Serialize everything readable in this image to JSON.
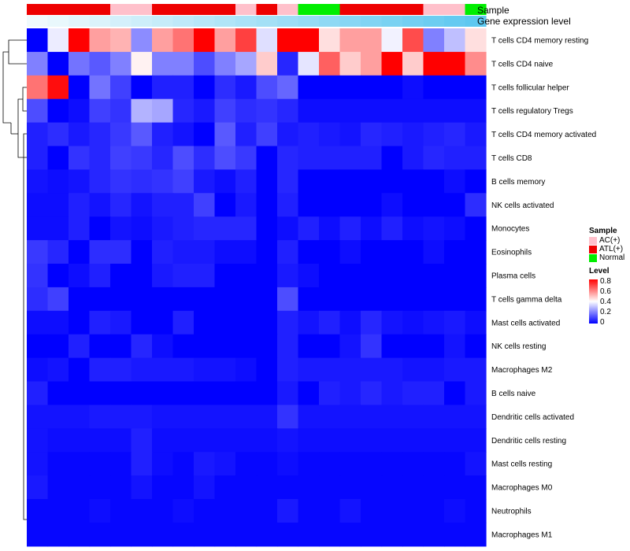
{
  "chart_data": {
    "type": "heatmap",
    "title": "",
    "annotation_labels": [
      "Sample",
      "Gene expression level"
    ],
    "sample_groups": [
      "ATL(+)",
      "ATL(+)",
      "ATL(+)",
      "ATL(+)",
      "AC(+)",
      "AC(+)",
      "ATL(+)",
      "ATL(+)",
      "ATL(+)",
      "ATL(+)",
      "AC(+)",
      "ATL(+)",
      "AC(+)",
      "Normal",
      "Normal",
      "ATL(+)",
      "ATL(+)",
      "ATL(+)",
      "ATL(+)",
      "AC(+)",
      "AC(+)",
      "Normal"
    ],
    "expression_level": [
      0,
      0.04,
      0.08,
      0.12,
      0.16,
      0.2,
      0.24,
      0.28,
      0.32,
      0.36,
      0.4,
      0.44,
      0.48,
      0.52,
      0.56,
      0.6,
      0.64,
      0.68,
      0.72,
      0.76,
      0.8,
      0.84
    ],
    "rows": [
      "T cells CD4 memory resting",
      "T cells CD4 naive",
      "T cells follicular helper",
      "T cells regulatory  Tregs",
      "T cells CD4 memory activated",
      "T cells CD8",
      "B cells memory",
      "NK cells activated",
      "Monocytes",
      "Eosinophils",
      "Plasma cells",
      "T cells gamma delta",
      "Mast cells activated",
      "NK cells resting",
      "Macrophages M2",
      "B cells naive",
      "Dendritic cells activated",
      "Dendritic cells resting",
      "Mast cells resting",
      "Macrophages M0",
      "Neutrophils",
      "Macrophages M1"
    ],
    "values": [
      [
        0.0,
        0.37,
        0.8,
        0.55,
        0.52,
        0.22,
        0.55,
        0.62,
        0.8,
        0.55,
        0.7,
        0.35,
        0.8,
        0.8,
        0.45,
        0.55,
        0.55,
        0.38,
        0.68,
        0.2,
        0.3,
        0.45
      ],
      [
        0.2,
        0.0,
        0.18,
        0.14,
        0.2,
        0.42,
        0.2,
        0.2,
        0.12,
        0.2,
        0.26,
        0.48,
        0.06,
        0.36,
        0.65,
        0.48,
        0.55,
        0.8,
        0.48,
        0.8,
        0.8,
        0.58
      ],
      [
        0.62,
        0.78,
        0.0,
        0.18,
        0.1,
        0.0,
        0.05,
        0.05,
        0.0,
        0.07,
        0.04,
        0.12,
        0.16,
        0.0,
        0.0,
        0.0,
        0.0,
        0.0,
        0.02,
        0.0,
        0.0,
        0.0
      ],
      [
        0.12,
        0.0,
        0.02,
        0.1,
        0.08,
        0.28,
        0.26,
        0.06,
        0.04,
        0.1,
        0.07,
        0.08,
        0.06,
        0.02,
        0.02,
        0.02,
        0.02,
        0.02,
        0.02,
        0.02,
        0.02,
        0.02
      ],
      [
        0.05,
        0.07,
        0.04,
        0.06,
        0.09,
        0.14,
        0.05,
        0.03,
        0.0,
        0.14,
        0.05,
        0.1,
        0.04,
        0.05,
        0.04,
        0.03,
        0.06,
        0.05,
        0.04,
        0.05,
        0.06,
        0.04
      ],
      [
        0.05,
        0.0,
        0.08,
        0.06,
        0.1,
        0.09,
        0.06,
        0.12,
        0.07,
        0.12,
        0.09,
        0.0,
        0.06,
        0.05,
        0.05,
        0.05,
        0.05,
        0.0,
        0.04,
        0.06,
        0.05,
        0.05
      ],
      [
        0.03,
        0.02,
        0.03,
        0.06,
        0.08,
        0.07,
        0.08,
        0.1,
        0.04,
        0.02,
        0.05,
        0.0,
        0.06,
        0.0,
        0.0,
        0.0,
        0.0,
        0.0,
        0.0,
        0.0,
        0.02,
        0.0
      ],
      [
        0.02,
        0.02,
        0.05,
        0.03,
        0.06,
        0.03,
        0.05,
        0.05,
        0.1,
        0.0,
        0.04,
        0.0,
        0.05,
        0.0,
        0.0,
        0.0,
        0.0,
        0.02,
        0.0,
        0.0,
        0.0,
        0.07
      ],
      [
        0.02,
        0.02,
        0.05,
        0.0,
        0.03,
        0.02,
        0.04,
        0.05,
        0.06,
        0.06,
        0.06,
        0.0,
        0.02,
        0.05,
        0.02,
        0.05,
        0.02,
        0.05,
        0.02,
        0.03,
        0.02,
        0.0
      ],
      [
        0.09,
        0.06,
        0.0,
        0.07,
        0.07,
        0.0,
        0.05,
        0.04,
        0.04,
        0.02,
        0.02,
        0.0,
        0.05,
        0.0,
        0.0,
        0.02,
        0.0,
        0.0,
        0.0,
        0.02,
        0.0,
        0.0
      ],
      [
        0.08,
        0.0,
        0.02,
        0.05,
        0.0,
        0.0,
        0.04,
        0.05,
        0.05,
        0.0,
        0.0,
        0.0,
        0.04,
        0.02,
        0.0,
        0.0,
        0.0,
        0.0,
        0.0,
        0.0,
        0.0,
        0.0
      ],
      [
        0.07,
        0.1,
        0.0,
        0.0,
        0.0,
        0.0,
        0.0,
        0.0,
        0.0,
        0.0,
        0.0,
        0.0,
        0.12,
        0.0,
        0.0,
        0.0,
        0.0,
        0.0,
        0.0,
        0.0,
        0.0,
        0.0
      ],
      [
        0.02,
        0.02,
        0.0,
        0.05,
        0.04,
        0.0,
        0.0,
        0.05,
        0.0,
        0.0,
        0.0,
        0.0,
        0.05,
        0.03,
        0.05,
        0.02,
        0.06,
        0.03,
        0.02,
        0.03,
        0.04,
        0.02
      ],
      [
        0.0,
        0.0,
        0.05,
        0.0,
        0.0,
        0.06,
        0.02,
        0.0,
        0.0,
        0.0,
        0.0,
        0.0,
        0.05,
        0.0,
        0.0,
        0.03,
        0.08,
        0.0,
        0.0,
        0.0,
        0.03,
        0.0
      ],
      [
        0.02,
        0.03,
        0.0,
        0.05,
        0.05,
        0.04,
        0.04,
        0.04,
        0.03,
        0.03,
        0.02,
        0.0,
        0.05,
        0.04,
        0.04,
        0.04,
        0.04,
        0.04,
        0.03,
        0.03,
        0.04,
        0.04
      ],
      [
        0.05,
        0.0,
        0.0,
        0.0,
        0.0,
        0.0,
        0.0,
        0.0,
        0.0,
        0.0,
        0.0,
        0.0,
        0.04,
        0.0,
        0.05,
        0.04,
        0.06,
        0.04,
        0.05,
        0.05,
        0.0,
        0.04
      ],
      [
        0.03,
        0.03,
        0.03,
        0.04,
        0.04,
        0.04,
        0.03,
        0.03,
        0.03,
        0.03,
        0.03,
        0.03,
        0.08,
        0.03,
        0.03,
        0.03,
        0.03,
        0.03,
        0.03,
        0.03,
        0.03,
        0.03
      ],
      [
        0.03,
        0.02,
        0.02,
        0.02,
        0.02,
        0.05,
        0.02,
        0.02,
        0.02,
        0.02,
        0.02,
        0.02,
        0.03,
        0.02,
        0.02,
        0.02,
        0.02,
        0.02,
        0.02,
        0.02,
        0.02,
        0.02
      ],
      [
        0.03,
        0.01,
        0.01,
        0.01,
        0.01,
        0.05,
        0.02,
        0.01,
        0.04,
        0.03,
        0.01,
        0.01,
        0.02,
        0.01,
        0.01,
        0.01,
        0.01,
        0.01,
        0.01,
        0.01,
        0.01,
        0.03
      ],
      [
        0.04,
        0.01,
        0.01,
        0.01,
        0.01,
        0.03,
        0.01,
        0.01,
        0.03,
        0.01,
        0.01,
        0.01,
        0.01,
        0.01,
        0.01,
        0.01,
        0.01,
        0.01,
        0.01,
        0.01,
        0.01,
        0.01
      ],
      [
        0.01,
        0.01,
        0.01,
        0.02,
        0.01,
        0.01,
        0.01,
        0.02,
        0.01,
        0.01,
        0.01,
        0.01,
        0.04,
        0.01,
        0.01,
        0.03,
        0.01,
        0.01,
        0.01,
        0.01,
        0.02,
        0.01
      ],
      [
        0.01,
        0.01,
        0.01,
        0.01,
        0.01,
        0.01,
        0.01,
        0.01,
        0.01,
        0.01,
        0.01,
        0.01,
        0.01,
        0.01,
        0.01,
        0.01,
        0.01,
        0.01,
        0.01,
        0.01,
        0.01,
        0.01
      ]
    ],
    "legend": {
      "sample_title": "Sample",
      "sample_entries": [
        {
          "label": "AC(+)",
          "color": "#ffc0cb"
        },
        {
          "label": "ATL(+)",
          "color": "#ee0000"
        },
        {
          "label": "Normal",
          "color": "#00ee00"
        }
      ],
      "level_title": "Level",
      "level_ticks": [
        "0.8",
        "0.6",
        "0.4",
        "0.2",
        "0"
      ],
      "level_tick_values": [
        0.8,
        0.6,
        0.4,
        0.2,
        0
      ],
      "color_low": "#0000ff",
      "color_mid": "#ffffff",
      "color_high": "#ff0000",
      "mid_value": 0.4,
      "max_value": 0.8
    },
    "expression_colors": {
      "low": "#f0fafd",
      "high": "#5ec8f0"
    }
  }
}
